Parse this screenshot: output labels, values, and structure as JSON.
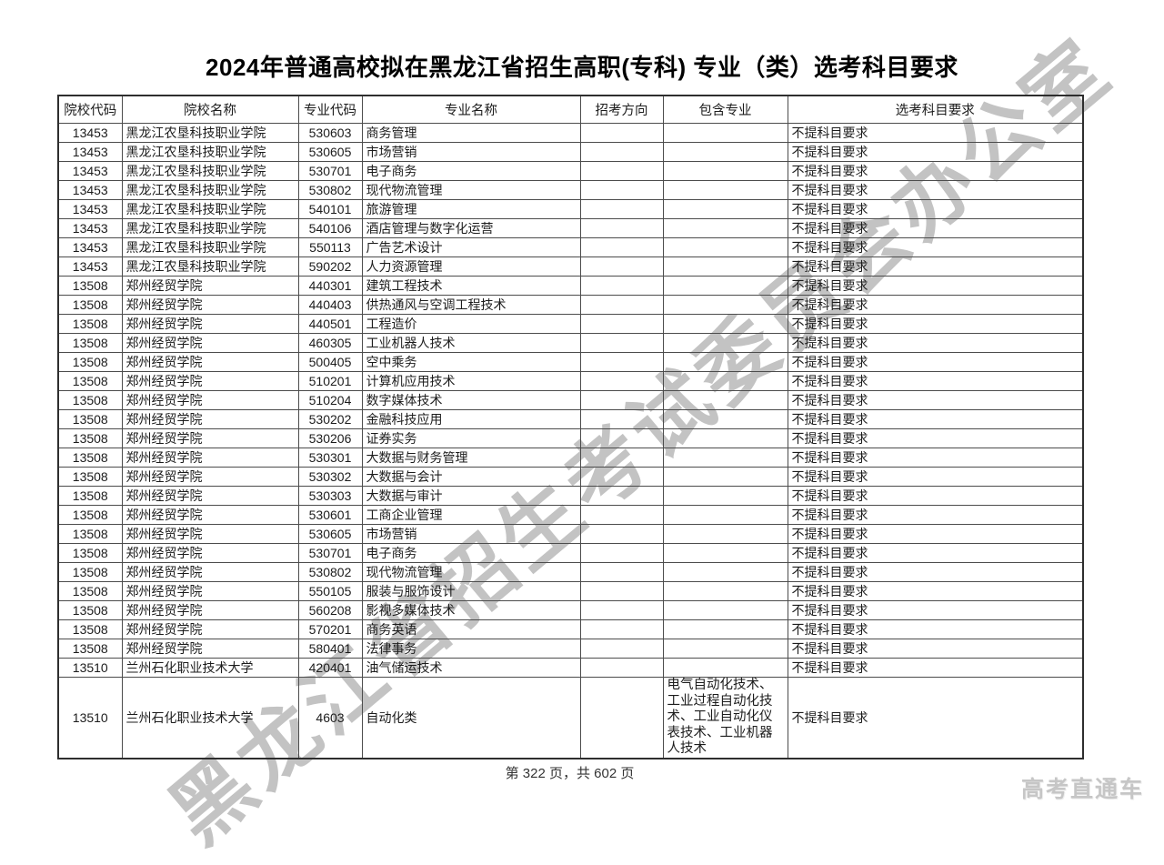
{
  "page": {
    "title": "2024年普通高校拟在黑龙江省招生高职(专科) 专业（类）选考科目要求",
    "footer": "第 322 页，共 602 页",
    "brand": "高考直通车",
    "watermark": "黑龙江省招生考试委员会办公室"
  },
  "table": {
    "headers": [
      "院校代码",
      "院校名称",
      "专业代码",
      "专业名称",
      "招考方向",
      "包含专业",
      "选考科目要求"
    ],
    "rows": [
      {
        "code": "13453",
        "school": "黑龙江农垦科技职业学院",
        "major_code": "530603",
        "major": "商务管理",
        "direction": "",
        "includes": "",
        "requirement": "不提科目要求"
      },
      {
        "code": "13453",
        "school": "黑龙江农垦科技职业学院",
        "major_code": "530605",
        "major": "市场营销",
        "direction": "",
        "includes": "",
        "requirement": "不提科目要求"
      },
      {
        "code": "13453",
        "school": "黑龙江农垦科技职业学院",
        "major_code": "530701",
        "major": "电子商务",
        "direction": "",
        "includes": "",
        "requirement": "不提科目要求"
      },
      {
        "code": "13453",
        "school": "黑龙江农垦科技职业学院",
        "major_code": "530802",
        "major": "现代物流管理",
        "direction": "",
        "includes": "",
        "requirement": "不提科目要求"
      },
      {
        "code": "13453",
        "school": "黑龙江农垦科技职业学院",
        "major_code": "540101",
        "major": "旅游管理",
        "direction": "",
        "includes": "",
        "requirement": "不提科目要求"
      },
      {
        "code": "13453",
        "school": "黑龙江农垦科技职业学院",
        "major_code": "540106",
        "major": "酒店管理与数字化运营",
        "direction": "",
        "includes": "",
        "requirement": "不提科目要求"
      },
      {
        "code": "13453",
        "school": "黑龙江农垦科技职业学院",
        "major_code": "550113",
        "major": "广告艺术设计",
        "direction": "",
        "includes": "",
        "requirement": "不提科目要求"
      },
      {
        "code": "13453",
        "school": "黑龙江农垦科技职业学院",
        "major_code": "590202",
        "major": "人力资源管理",
        "direction": "",
        "includes": "",
        "requirement": "不提科目要求"
      },
      {
        "code": "13508",
        "school": "郑州经贸学院",
        "major_code": "440301",
        "major": "建筑工程技术",
        "direction": "",
        "includes": "",
        "requirement": "不提科目要求"
      },
      {
        "code": "13508",
        "school": "郑州经贸学院",
        "major_code": "440403",
        "major": "供热通风与空调工程技术",
        "direction": "",
        "includes": "",
        "requirement": "不提科目要求"
      },
      {
        "code": "13508",
        "school": "郑州经贸学院",
        "major_code": "440501",
        "major": "工程造价",
        "direction": "",
        "includes": "",
        "requirement": "不提科目要求"
      },
      {
        "code": "13508",
        "school": "郑州经贸学院",
        "major_code": "460305",
        "major": "工业机器人技术",
        "direction": "",
        "includes": "",
        "requirement": "不提科目要求"
      },
      {
        "code": "13508",
        "school": "郑州经贸学院",
        "major_code": "500405",
        "major": "空中乘务",
        "direction": "",
        "includes": "",
        "requirement": "不提科目要求"
      },
      {
        "code": "13508",
        "school": "郑州经贸学院",
        "major_code": "510201",
        "major": "计算机应用技术",
        "direction": "",
        "includes": "",
        "requirement": "不提科目要求"
      },
      {
        "code": "13508",
        "school": "郑州经贸学院",
        "major_code": "510204",
        "major": "数字媒体技术",
        "direction": "",
        "includes": "",
        "requirement": "不提科目要求"
      },
      {
        "code": "13508",
        "school": "郑州经贸学院",
        "major_code": "530202",
        "major": "金融科技应用",
        "direction": "",
        "includes": "",
        "requirement": "不提科目要求"
      },
      {
        "code": "13508",
        "school": "郑州经贸学院",
        "major_code": "530206",
        "major": "证券实务",
        "direction": "",
        "includes": "",
        "requirement": "不提科目要求"
      },
      {
        "code": "13508",
        "school": "郑州经贸学院",
        "major_code": "530301",
        "major": "大数据与财务管理",
        "direction": "",
        "includes": "",
        "requirement": "不提科目要求"
      },
      {
        "code": "13508",
        "school": "郑州经贸学院",
        "major_code": "530302",
        "major": "大数据与会计",
        "direction": "",
        "includes": "",
        "requirement": "不提科目要求"
      },
      {
        "code": "13508",
        "school": "郑州经贸学院",
        "major_code": "530303",
        "major": "大数据与审计",
        "direction": "",
        "includes": "",
        "requirement": "不提科目要求"
      },
      {
        "code": "13508",
        "school": "郑州经贸学院",
        "major_code": "530601",
        "major": "工商企业管理",
        "direction": "",
        "includes": "",
        "requirement": "不提科目要求"
      },
      {
        "code": "13508",
        "school": "郑州经贸学院",
        "major_code": "530605",
        "major": "市场营销",
        "direction": "",
        "includes": "",
        "requirement": "不提科目要求"
      },
      {
        "code": "13508",
        "school": "郑州经贸学院",
        "major_code": "530701",
        "major": "电子商务",
        "direction": "",
        "includes": "",
        "requirement": "不提科目要求"
      },
      {
        "code": "13508",
        "school": "郑州经贸学院",
        "major_code": "530802",
        "major": "现代物流管理",
        "direction": "",
        "includes": "",
        "requirement": "不提科目要求"
      },
      {
        "code": "13508",
        "school": "郑州经贸学院",
        "major_code": "550105",
        "major": "服装与服饰设计",
        "direction": "",
        "includes": "",
        "requirement": "不提科目要求"
      },
      {
        "code": "13508",
        "school": "郑州经贸学院",
        "major_code": "560208",
        "major": "影视多媒体技术",
        "direction": "",
        "includes": "",
        "requirement": "不提科目要求"
      },
      {
        "code": "13508",
        "school": "郑州经贸学院",
        "major_code": "570201",
        "major": "商务英语",
        "direction": "",
        "includes": "",
        "requirement": "不提科目要求"
      },
      {
        "code": "13508",
        "school": "郑州经贸学院",
        "major_code": "580401",
        "major": "法律事务",
        "direction": "",
        "includes": "",
        "requirement": "不提科目要求"
      },
      {
        "code": "13510",
        "school": "兰州石化职业技术大学",
        "major_code": "420401",
        "major": "油气储运技术",
        "direction": "",
        "includes": "",
        "requirement": "不提科目要求"
      },
      {
        "code": "13510",
        "school": "兰州石化职业技术大学",
        "major_code": "4603",
        "major": "自动化类",
        "direction": "",
        "includes": "电气自动化技术、工业过程自动化技术、工业自动化仪表技术、工业机器人技术",
        "requirement": "不提科目要求",
        "tall": true
      }
    ]
  }
}
